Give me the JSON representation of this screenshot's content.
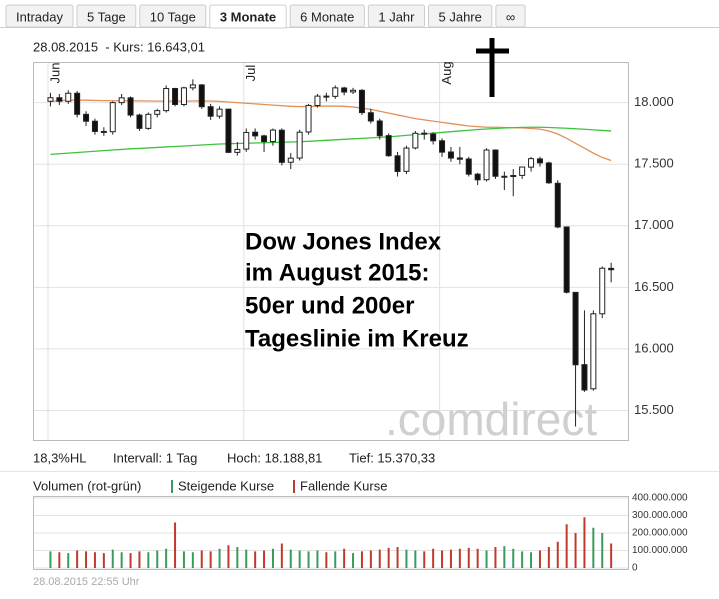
{
  "tabs": [
    "Intraday",
    "5 Tage",
    "10 Tage",
    "3 Monate",
    "6 Monate",
    "1 Jahr",
    "5 Jahre",
    "∞"
  ],
  "active_tab": 3,
  "chart_data": {
    "type": "candlestick",
    "header": "28.08.2015  - Kurs: 16.643,01",
    "categories": [
      "Jun",
      null,
      null,
      null,
      null,
      null,
      null,
      null,
      null,
      null,
      null,
      null,
      null,
      null,
      null,
      null,
      null,
      null,
      null,
      null,
      null,
      null,
      "Jul",
      null,
      null,
      null,
      null,
      null,
      null,
      null,
      null,
      null,
      null,
      null,
      null,
      null,
      null,
      null,
      null,
      null,
      null,
      null,
      null,
      null,
      "Aug",
      null,
      null,
      null,
      null,
      null,
      null,
      null,
      null,
      null,
      null,
      null,
      null,
      null,
      null,
      null,
      null,
      null,
      null,
      null
    ],
    "open": [
      18011,
      18040,
      18011,
      18076,
      17905,
      17849,
      17766,
      17764,
      18000,
      18039,
      17899,
      17791,
      17905,
      17935,
      18115,
      17985,
      18120,
      18144,
      17967,
      17890,
      17947,
      17596,
      17623,
      17760,
      17730,
      17684,
      17776,
      17516,
      17550,
      17762,
      17977,
      18053,
      18051,
      18119,
      18087,
      18100,
      17918,
      17851,
      17732,
      17568,
      17442,
      17632,
      17752,
      17745,
      17690,
      17599,
      17551,
      17542,
      17419,
      17374,
      17615,
      17402,
      17402,
      17409,
      17476,
      17543,
      17510,
      17345,
      16990,
      16459,
      15872,
      15676,
      16285,
      16654
    ],
    "high": [
      18080,
      18070,
      18100,
      18095,
      17930,
      17870,
      17800,
      18010,
      18070,
      18050,
      17910,
      17920,
      17950,
      18140,
      18120,
      18130,
      18189,
      18150,
      17990,
      17970,
      17950,
      17680,
      17790,
      17790,
      17740,
      17790,
      17790,
      17590,
      17780,
      17990,
      18070,
      18080,
      18140,
      18130,
      18120,
      18110,
      17950,
      17870,
      17750,
      17600,
      17650,
      17770,
      17780,
      17760,
      17710,
      17640,
      17640,
      17560,
      17430,
      17630,
      17620,
      17440,
      17460,
      17480,
      17560,
      17560,
      17520,
      17370,
      16995,
      16460,
      16313,
      16312,
      16670,
      16700
    ],
    "low": [
      17970,
      17980,
      17990,
      17880,
      17810,
      17740,
      17730,
      17740,
      17980,
      17880,
      17770,
      17780,
      17880,
      17920,
      17970,
      17970,
      18100,
      17950,
      17860,
      17870,
      17590,
      17570,
      17600,
      17700,
      17600,
      17650,
      17490,
      17460,
      17530,
      17740,
      17960,
      18010,
      18030,
      18060,
      18070,
      17900,
      17830,
      17700,
      17560,
      17400,
      17420,
      17620,
      17700,
      17660,
      17560,
      17520,
      17500,
      17400,
      17330,
      17360,
      17380,
      17290,
      17240,
      17380,
      17440,
      17480,
      17340,
      16980,
      16450,
      15370,
      15651,
      15660,
      16250,
      16540
    ],
    "close": [
      18040,
      18011,
      18076,
      17905,
      17849,
      17766,
      17764,
      18000,
      18039,
      17899,
      17791,
      17905,
      17935,
      18115,
      17985,
      18120,
      18144,
      17967,
      17890,
      17947,
      17596,
      17620,
      17758,
      17730,
      17684,
      17777,
      17515,
      17549,
      17760,
      17977,
      18053,
      18050,
      18120,
      18086,
      18100,
      17919,
      17851,
      17731,
      17569,
      17441,
      17631,
      17751,
      17745,
      17690,
      17598,
      17550,
      17540,
      17419,
      17373,
      17615,
      17402,
      17402,
      17408,
      17477,
      17545,
      17511,
      17349,
      16990,
      16460,
      15871,
      15666,
      16285,
      16655,
      16643
    ],
    "lines": [
      {
        "color": "#e0915a",
        "values": [
          18010,
          18015,
          18020,
          18020,
          18020,
          18018,
          18016,
          18015,
          18015,
          18015,
          18014,
          18013,
          18012,
          18012,
          18012,
          18012,
          18013,
          18014,
          18013,
          18010,
          18005,
          18000,
          17995,
          17990,
          17985,
          17980,
          17975,
          17970,
          17968,
          17968,
          17970,
          17972,
          17972,
          17970,
          17965,
          17955,
          17945,
          17930,
          17915,
          17900,
          17885,
          17870,
          17860,
          17850,
          17840,
          17830,
          17820,
          17810,
          17805,
          17800,
          17800,
          17798,
          17796,
          17795,
          17790,
          17785,
          17770,
          17745,
          17710,
          17670,
          17630,
          17590,
          17555,
          17530
        ]
      },
      {
        "color": "#3cc43c",
        "values": [
          17580,
          17585,
          17590,
          17595,
          17600,
          17605,
          17610,
          17615,
          17620,
          17625,
          17628,
          17632,
          17636,
          17640,
          17644,
          17648,
          17652,
          17656,
          17660,
          17664,
          17666,
          17668,
          17670,
          17672,
          17674,
          17676,
          17678,
          17680,
          17682,
          17686,
          17690,
          17694,
          17698,
          17702,
          17706,
          17710,
          17714,
          17718,
          17722,
          17728,
          17734,
          17740,
          17746,
          17752,
          17758,
          17764,
          17770,
          17776,
          17782,
          17786,
          17790,
          17794,
          17797,
          17799,
          17800,
          17800,
          17798,
          17795,
          17792,
          17788,
          17784,
          17779,
          17774,
          17770
        ]
      }
    ],
    "up_color": "#ffffff",
    "down_color": "#111111",
    "ylim": [
      15260,
      18330
    ],
    "yticks": [
      {
        "value": 15500,
        "label": "15.500"
      },
      {
        "value": 16000,
        "label": "16.000"
      },
      {
        "value": 16500,
        "label": "16.500"
      },
      {
        "value": 17000,
        "label": "17.000"
      },
      {
        "value": 17500,
        "label": "17.500"
      },
      {
        "value": 18000,
        "label": "18.000"
      }
    ],
    "grid": true,
    "annotation": [
      "Dow Jones Index",
      "im August 2015:",
      "50er und 200er",
      "Tageslinie im Kreuz"
    ],
    "watermark": ".comdirect",
    "stats": [
      "18,3%HL",
      "Intervall: 1 Tag",
      "Hoch: 18.188,81",
      "Tief: 15.370,33"
    ],
    "volume": {
      "title": "Volumen (rot-grün)",
      "up_label": "Steigende Kurse",
      "down_label": "Fallende Kurse",
      "up_color": "#3a9a5a",
      "down_color": "#c0392b",
      "values": [
        95000000,
        90000000,
        85000000,
        100000000,
        95000000,
        90000000,
        85000000,
        105000000,
        90000000,
        85000000,
        95000000,
        90000000,
        100000000,
        110000000,
        260000000,
        95000000,
        90000000,
        100000000,
        95000000,
        110000000,
        130000000,
        120000000,
        105000000,
        95000000,
        100000000,
        110000000,
        140000000,
        105000000,
        100000000,
        95000000,
        100000000,
        90000000,
        95000000,
        110000000,
        85000000,
        95000000,
        100000000,
        105000000,
        115000000,
        120000000,
        105000000,
        100000000,
        95000000,
        110000000,
        100000000,
        105000000,
        110000000,
        115000000,
        110000000,
        100000000,
        120000000,
        125000000,
        110000000,
        95000000,
        90000000,
        100000000,
        120000000,
        150000000,
        250000000,
        200000000,
        290000000,
        230000000,
        200000000,
        140000000
      ],
      "ylim": [
        0,
        400000000
      ],
      "yticks": [
        0,
        {
          "value": 100000000,
          "label": "100.000.000"
        },
        {
          "value": 200000000,
          "label": "200.000.000"
        },
        {
          "value": 300000000,
          "label": "300.000.000"
        },
        {
          "value": 400000000,
          "label": "400.000.000"
        }
      ]
    },
    "timestamp": "28.08.2015 22:55 Uhr"
  }
}
